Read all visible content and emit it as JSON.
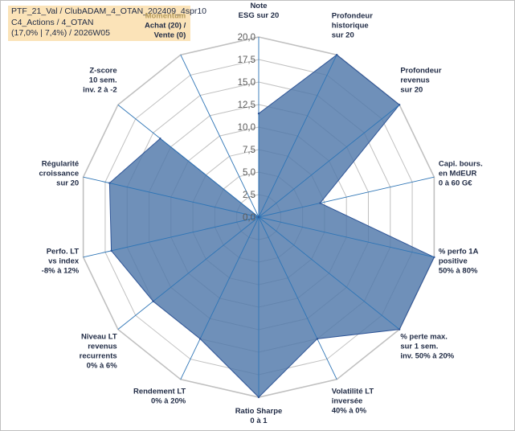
{
  "header": {
    "line1": "PTF_21_Val / ClubADAM_4_OTAN_202409_4spr10",
    "line2": "C4_Actions / 4_OTAN",
    "line3": "(17,0% | 7,4%) / 2026W05"
  },
  "chart_data": {
    "type": "radar",
    "axes": [
      {
        "label": [
          "Note",
          "ESG sur 20"
        ]
      },
      {
        "label": [
          "Profondeur",
          "historique",
          "sur 20"
        ]
      },
      {
        "label": [
          "Profondeur",
          "revenus",
          "sur 20"
        ]
      },
      {
        "label": [
          "Capi. bours.",
          "en MdEUR",
          "0 à 60 G€"
        ]
      },
      {
        "label": [
          "% perfo 1A",
          "positive",
          "50% à 80%"
        ]
      },
      {
        "label": [
          "% perte max.",
          "sur 1 sem.",
          "inv. 50% à 20%"
        ]
      },
      {
        "label": [
          "Volatilité LT",
          "inversée",
          "40% à 0%"
        ]
      },
      {
        "label": [
          "Ratio Sharpe",
          "0 à 1"
        ]
      },
      {
        "label": [
          "Rendement LT",
          "0% à 20%"
        ]
      },
      {
        "label": [
          "Niveau LT",
          "revenus",
          "recurrents",
          "0% à 6%"
        ]
      },
      {
        "label": [
          "Perfo. LT",
          "vs index",
          "-8% à 12%"
        ]
      },
      {
        "label": [
          "Régularité",
          "croissance",
          "sur 20"
        ]
      },
      {
        "label": [
          "Z-score",
          "10 sem.",
          "inv. 2 à -2"
        ]
      },
      {
        "label": [
          "Momentum",
          "Achat (20) /",
          "Vente (0)"
        ],
        "highlight_first": true
      }
    ],
    "values": [
      11.5,
      20,
      20,
      7,
      20,
      20,
      15,
      20,
      15,
      15,
      16.8,
      17,
      14,
      0
    ],
    "scale": {
      "min": 0,
      "max": 20,
      "step": 2.5
    },
    "tick_labels": [
      "0,0",
      "2,5",
      "5,0",
      "7,5",
      "10,0",
      "12,5",
      "15,0",
      "17,5",
      "20,0"
    ],
    "grid": true,
    "colors": {
      "fill": "#4f77aa",
      "stroke": "#2f5597",
      "grid": "#c0c0c0",
      "axis": "#2e75b6"
    }
  }
}
